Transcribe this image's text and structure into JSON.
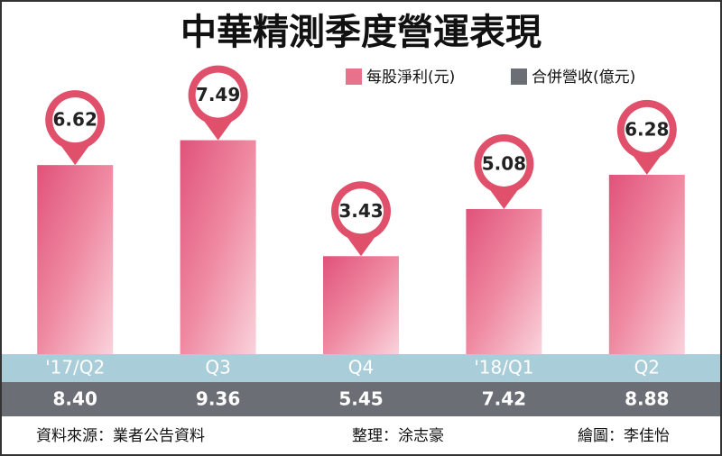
{
  "chart_data": {
    "type": "bar",
    "title": "中華精測季度營運表現",
    "categories": [
      "'17/Q2",
      "Q3",
      "Q4",
      "'18/Q1",
      "Q2"
    ],
    "series": [
      {
        "name": "每股淨利(元)",
        "color": "#e8718c",
        "values": [
          6.62,
          7.49,
          3.43,
          5.08,
          6.28
        ]
      },
      {
        "name": "合併營收(億元)",
        "color": "#6b6f75",
        "values": [
          8.4,
          9.36,
          5.45,
          7.42,
          8.88
        ],
        "value_labels": [
          "8.40",
          "9.36",
          "5.45",
          "7.42",
          "8.88"
        ]
      }
    ],
    "ylim": [
      0,
      10
    ],
    "source": "資料來源：業者公告資料",
    "compiled_by": "整理：涂志豪",
    "graphics_by": "繪圖：李佳怡"
  }
}
